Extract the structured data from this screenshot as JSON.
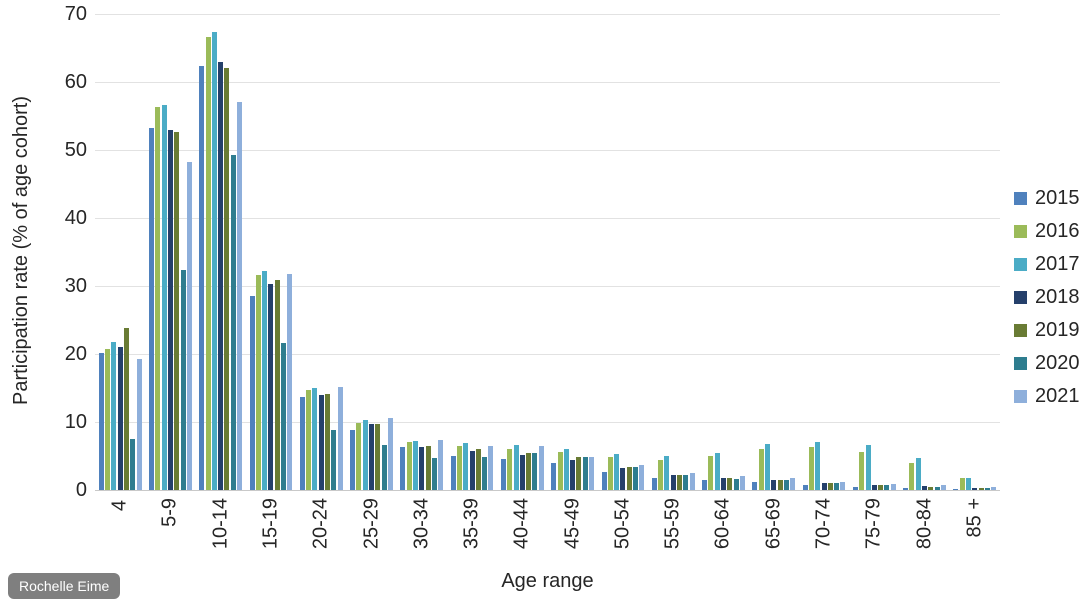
{
  "watermark": {
    "label": "Rochelle Eime",
    "bg_color": "#7f7f7f",
    "text_color": "#ffffff"
  },
  "chart_data": {
    "type": "bar",
    "title": "",
    "xlabel": "Age range",
    "ylabel": "Participation rate (% of age cohort)",
    "ylim": [
      0,
      70
    ],
    "yticks": [
      0,
      10,
      20,
      30,
      40,
      50,
      60,
      70
    ],
    "grid": true,
    "legend_position": "right",
    "categories": [
      "4",
      "5-9",
      "10-14",
      "15-19",
      "20-24",
      "25-29",
      "30-34",
      "35-39",
      "40-44",
      "45-49",
      "50-54",
      "55-59",
      "60-64",
      "65-69",
      "70-74",
      "75-79",
      "80-84",
      "85 +"
    ],
    "series": [
      {
        "name": "2015",
        "color": "#4F81BD",
        "values": [
          20.2,
          53.3,
          62.4,
          28.5,
          13.7,
          8.8,
          6.3,
          5.0,
          4.5,
          3.9,
          2.7,
          1.8,
          1.4,
          1.2,
          0.7,
          0.5,
          0.3,
          0.2
        ]
      },
      {
        "name": "2016",
        "color": "#9BBB59",
        "values": [
          20.7,
          56.3,
          66.6,
          31.6,
          14.7,
          9.9,
          7.0,
          6.5,
          6.0,
          5.6,
          4.8,
          4.4,
          5.0,
          6.0,
          6.3,
          5.6,
          3.9,
          1.7
        ]
      },
      {
        "name": "2017",
        "color": "#4BACC6",
        "values": [
          21.8,
          56.6,
          67.3,
          32.2,
          15.0,
          10.3,
          7.2,
          6.9,
          6.6,
          6.1,
          5.3,
          5.0,
          5.5,
          6.7,
          7.0,
          6.6,
          4.7,
          1.8
        ]
      },
      {
        "name": "2018",
        "color": "#25406B",
        "values": [
          21.0,
          52.9,
          63.0,
          30.3,
          14.0,
          9.7,
          6.3,
          5.7,
          5.1,
          4.4,
          3.2,
          2.2,
          1.7,
          1.5,
          1.1,
          0.8,
          0.6,
          0.3
        ]
      },
      {
        "name": "2019",
        "color": "#697B34",
        "values": [
          23.8,
          52.6,
          62.0,
          30.9,
          14.1,
          9.7,
          6.4,
          6.0,
          5.5,
          4.9,
          3.4,
          2.2,
          1.7,
          1.4,
          1.0,
          0.7,
          0.5,
          0.3
        ]
      },
      {
        "name": "2020",
        "color": "#2E7D8F",
        "values": [
          7.5,
          32.4,
          49.2,
          21.6,
          8.8,
          6.6,
          4.7,
          4.8,
          5.4,
          4.8,
          3.4,
          2.2,
          1.6,
          1.4,
          1.0,
          0.7,
          0.5,
          0.3
        ]
      },
      {
        "name": "2021",
        "color": "#8EAFDB",
        "values": [
          19.2,
          48.3,
          57.0,
          31.8,
          15.2,
          10.6,
          7.4,
          6.4,
          6.4,
          4.9,
          3.7,
          2.5,
          2.0,
          1.7,
          1.2,
          0.9,
          0.7,
          0.4
        ]
      }
    ]
  }
}
